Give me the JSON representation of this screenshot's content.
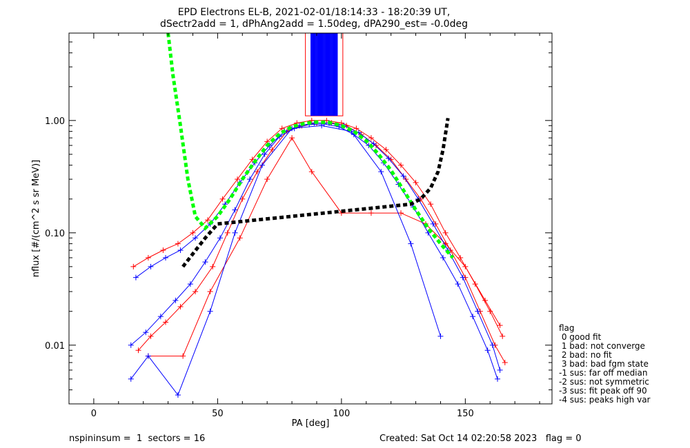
{
  "chart_data": {
    "type": "line",
    "title": "EPD Electrons EL-B, 2021-02-01/18:14:33 - 18:20:39 UT,",
    "subtitle": "dSectr2add = 1, dPhAng2add = 1.50deg, dPA290_est=  -0.0deg",
    "xlabel": "PA [deg]",
    "ylabel": "nflux [#/(cm^2 s sr MeV)]",
    "xlim": [
      -10,
      185
    ],
    "ylim": [
      0.003,
      6
    ],
    "yscale": "log",
    "x_ticks": [
      0,
      50,
      100,
      150
    ],
    "x_tick_labels": [
      "0",
      "50",
      "100",
      "150"
    ],
    "y_ticks": [
      0.01,
      0.1,
      1.0
    ],
    "y_tick_labels": [
      "0.01",
      "0.10",
      "1.00"
    ],
    "grid": false,
    "series": [
      {
        "color": "#ff0000",
        "marker": "+",
        "x": [
          18,
          23,
          29,
          35,
          41,
          48,
          54,
          60,
          66,
          72,
          78,
          84,
          90,
          96,
          102,
          108,
          114,
          120,
          126,
          132,
          138,
          144,
          150,
          156,
          162,
          166
        ],
        "values": [
          0.009,
          0.012,
          0.016,
          0.022,
          0.03,
          0.05,
          0.1,
          0.2,
          0.35,
          0.55,
          0.8,
          0.9,
          0.95,
          0.95,
          0.9,
          0.75,
          0.6,
          0.45,
          0.3,
          0.2,
          0.12,
          0.07,
          0.04,
          0.02,
          0.01,
          0.007
        ]
      },
      {
        "color": "#ff0000",
        "marker": "+",
        "x": [
          16,
          22,
          28,
          34,
          40,
          46,
          52,
          58,
          64,
          70,
          76,
          82,
          88,
          94,
          100,
          106,
          112,
          118,
          124,
          130,
          136,
          142,
          148,
          154,
          160,
          165
        ],
        "values": [
          0.05,
          0.06,
          0.07,
          0.08,
          0.1,
          0.13,
          0.2,
          0.3,
          0.45,
          0.65,
          0.85,
          0.95,
          1.0,
          1.0,
          0.95,
          0.85,
          0.7,
          0.55,
          0.4,
          0.28,
          0.18,
          0.1,
          0.06,
          0.035,
          0.02,
          0.012
        ]
      },
      {
        "color": "#ff0000",
        "marker": "+",
        "x": [
          22,
          36,
          47,
          59,
          70,
          80,
          88,
          100,
          112,
          124,
          134,
          142,
          150,
          158,
          164
        ],
        "values": [
          0.008,
          0.008,
          0.03,
          0.09,
          0.3,
          0.7,
          0.35,
          0.15,
          0.15,
          0.15,
          0.12,
          0.08,
          0.05,
          0.025,
          0.015
        ]
      },
      {
        "color": "#0000ff",
        "marker": "+",
        "x": [
          15,
          21,
          27,
          33,
          39,
          45,
          51,
          57,
          63,
          69,
          75,
          81,
          87,
          93,
          99,
          105,
          111,
          117,
          123,
          129,
          135,
          141,
          147,
          153,
          159,
          163
        ],
        "values": [
          0.01,
          0.013,
          0.018,
          0.025,
          0.035,
          0.055,
          0.09,
          0.16,
          0.3,
          0.5,
          0.72,
          0.85,
          0.92,
          0.93,
          0.88,
          0.75,
          0.6,
          0.42,
          0.27,
          0.17,
          0.1,
          0.06,
          0.035,
          0.018,
          0.009,
          0.005
        ]
      },
      {
        "color": "#0000ff",
        "marker": "+",
        "x": [
          17,
          23,
          29,
          35,
          41,
          47,
          53,
          59,
          65,
          71,
          77,
          83,
          89,
          95,
          101,
          107,
          113,
          119,
          125,
          131,
          137,
          143,
          149,
          155,
          161,
          164
        ],
        "values": [
          0.04,
          0.05,
          0.06,
          0.07,
          0.09,
          0.12,
          0.18,
          0.28,
          0.42,
          0.6,
          0.8,
          0.9,
          0.95,
          0.95,
          0.9,
          0.78,
          0.62,
          0.46,
          0.32,
          0.2,
          0.12,
          0.07,
          0.04,
          0.02,
          0.01,
          0.006
        ]
      },
      {
        "color": "#0000ff",
        "marker": "+",
        "x": [
          15,
          22,
          34,
          47,
          57,
          68,
          80,
          92,
          104,
          116,
          128,
          140
        ],
        "values": [
          0.005,
          0.008,
          0.0036,
          0.02,
          0.1,
          0.4,
          0.85,
          0.9,
          0.8,
          0.35,
          0.08,
          0.012
        ]
      }
    ],
    "fit_curves": [
      {
        "color": "#00ff00",
        "style": "dashed",
        "x": [
          30,
          32,
          35,
          38,
          41,
          45,
          50,
          55,
          60,
          65,
          70,
          75,
          80,
          85,
          90,
          95,
          100,
          105,
          110,
          115,
          120,
          125,
          130,
          135,
          140,
          145
        ],
        "values": [
          6,
          2.5,
          0.9,
          0.3,
          0.14,
          0.11,
          0.14,
          0.2,
          0.3,
          0.43,
          0.6,
          0.76,
          0.88,
          0.94,
          0.97,
          0.96,
          0.9,
          0.8,
          0.66,
          0.5,
          0.36,
          0.24,
          0.16,
          0.11,
          0.08,
          0.06
        ]
      },
      {
        "color": "#000000",
        "style": "dashed",
        "x": [
          36,
          40,
          45,
          50,
          128,
          132,
          136,
          139,
          141,
          143
        ],
        "values": [
          0.05,
          0.065,
          0.09,
          0.12,
          0.18,
          0.2,
          0.25,
          0.35,
          0.55,
          1.05
        ]
      }
    ],
    "saturation_block": {
      "color": "#0000ff",
      "x_range": [
        86,
        100
      ],
      "y_range": [
        1.1,
        6
      ]
    },
    "legend": {
      "position": "right",
      "title": "flag",
      "items": [
        " 0 good fit",
        " 1 bad: not converge",
        " 2 bad: no fit",
        " 3 bad: bad fgm state",
        "-1 sus: far off median",
        "-2 sus: not symmetric",
        "-3 sus: fit peak off 90",
        "-4 sus: peaks high var"
      ]
    }
  },
  "footer": {
    "left": "nspininsum =  1  sectors = 16",
    "right": "Created: Sat Oct 14 02:20:58 2023   flag = 0"
  }
}
